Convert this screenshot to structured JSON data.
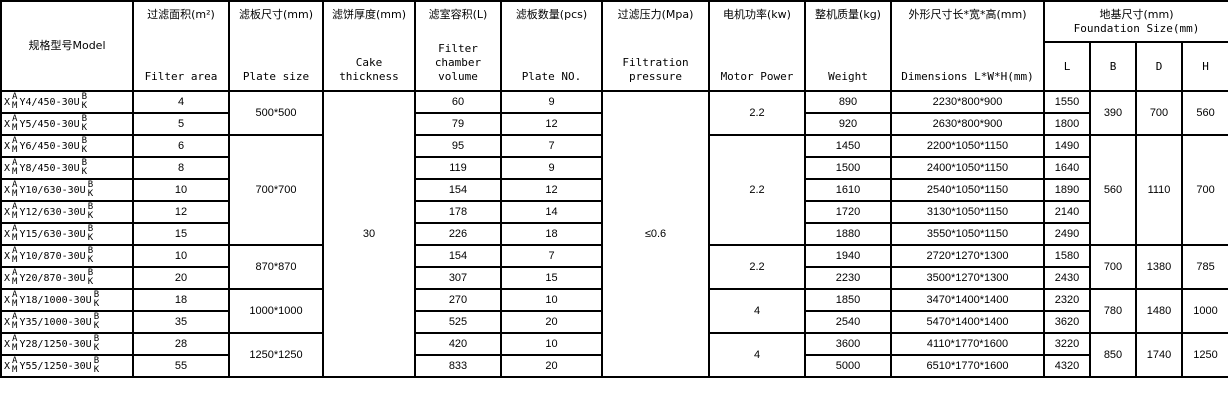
{
  "headers": {
    "model": "规格型号Model",
    "filter_area": {
      "cn": "过滤面积(m²)",
      "en": "Filter area"
    },
    "plate_size": {
      "cn": "滤板尺寸(mm)",
      "en": "Plate size"
    },
    "cake": {
      "cn": "滤饼厚度(mm)",
      "en": "Cake thickness"
    },
    "volume": {
      "cn": "滤室容积(L)",
      "en": "Filter chamber volume"
    },
    "plate_no": {
      "cn": "滤板数量(pcs)",
      "en": "Plate NO."
    },
    "pressure": {
      "cn": "过滤压力(Mpa)",
      "en": "Filtration pressure"
    },
    "motor": {
      "cn": "电机功率(kw)",
      "en": "Motor Power"
    },
    "weight": {
      "cn": "整机质量(kg)",
      "en": "Weight"
    },
    "dims": {
      "cn": "外形尺寸长*宽*高(mm)",
      "en": "Dimensions L*W*H(mm)"
    },
    "foundation": {
      "cn": "地基尺寸(mm)",
      "en": "Foundation Size(mm)"
    },
    "f_cols": [
      "L",
      "B",
      "D",
      "H"
    ]
  },
  "model_prefix": "X",
  "model_stack1": [
    "A",
    "M"
  ],
  "model_stack2": [
    "B",
    "K"
  ],
  "cake_thickness": "30",
  "pressure": "≤0.6",
  "groups": [
    {
      "plate_size": "500*500",
      "motor": "2.2",
      "B": "390",
      "D": "700",
      "H": "560",
      "rows": [
        {
          "model": "Y4/450-30U",
          "area": "4",
          "volume": "60",
          "plates": "9",
          "weight": "890",
          "dims": "2230*800*900",
          "L": "1550"
        },
        {
          "model": "Y5/450-30U",
          "area": "5",
          "volume": "79",
          "plates": "12",
          "weight": "920",
          "dims": "2630*800*900",
          "L": "1800"
        }
      ]
    },
    {
      "plate_size": "700*700",
      "motor": "2.2",
      "B": "560",
      "D": "1110",
      "H": "700",
      "rows": [
        {
          "model": "Y6/450-30U",
          "area": "6",
          "volume": "95",
          "plates": "7",
          "weight": "1450",
          "dims": "2200*1050*1150",
          "L": "1490"
        },
        {
          "model": "Y8/450-30U",
          "area": "8",
          "volume": "119",
          "plates": "9",
          "weight": "1500",
          "dims": "2400*1050*1150",
          "L": "1640"
        },
        {
          "model": "Y10/630-30U",
          "area": "10",
          "volume": "154",
          "plates": "12",
          "weight": "1610",
          "dims": "2540*1050*1150",
          "L": "1890"
        },
        {
          "model": "Y12/630-30U",
          "area": "12",
          "volume": "178",
          "plates": "14",
          "weight": "1720",
          "dims": "3130*1050*1150",
          "L": "2140"
        },
        {
          "model": "Y15/630-30U",
          "area": "15",
          "volume": "226",
          "plates": "18",
          "weight": "1880",
          "dims": "3550*1050*1150",
          "L": "2490"
        }
      ]
    },
    {
      "plate_size": "870*870",
      "motor": "2.2",
      "B": "700",
      "D": "1380",
      "H": "785",
      "rows": [
        {
          "model": "Y10/870-30U",
          "area": "10",
          "volume": "154",
          "plates": "7",
          "weight": "1940",
          "dims": "2720*1270*1300",
          "L": "1580"
        },
        {
          "model": "Y20/870-30U",
          "area": "20",
          "volume": "307",
          "plates": "15",
          "weight": "2230",
          "dims": "3500*1270*1300",
          "L": "2430"
        }
      ]
    },
    {
      "plate_size": "1000*1000",
      "motor": "4",
      "B": "780",
      "D": "1480",
      "H": "1000",
      "rows": [
        {
          "model": "Y18/1000-30U",
          "area": "18",
          "volume": "270",
          "plates": "10",
          "weight": "1850",
          "dims": "3470*1400*1400",
          "L": "2320"
        },
        {
          "model": "Y35/1000-30U",
          "area": "35",
          "volume": "525",
          "plates": "20",
          "weight": "2540",
          "dims": "5470*1400*1400",
          "L": "3620"
        }
      ]
    },
    {
      "plate_size": "1250*1250",
      "motor": "4",
      "B": "850",
      "D": "1740",
      "H": "1250",
      "rows": [
        {
          "model": "Y28/1250-30U",
          "area": "28",
          "volume": "420",
          "plates": "10",
          "weight": "3600",
          "dims": "4110*1770*1600",
          "L": "3220"
        },
        {
          "model": "Y55/1250-30U",
          "area": "55",
          "volume": "833",
          "plates": "20",
          "weight": "5000",
          "dims": "6510*1770*1600",
          "L": "4320"
        }
      ]
    }
  ]
}
